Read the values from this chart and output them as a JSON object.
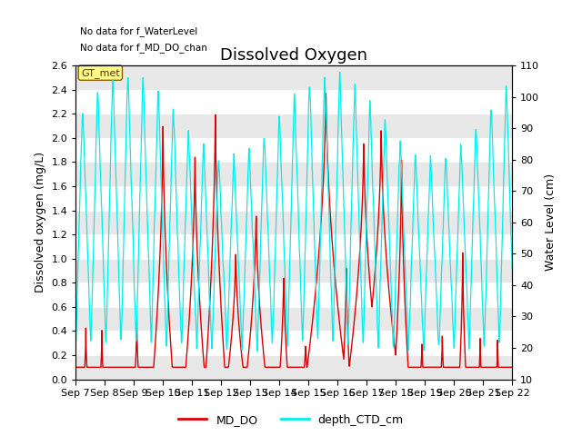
{
  "title": "Dissolved Oxygen",
  "ylabel_left": "Dissolved oxygen (mg/L)",
  "ylabel_right": "Water Level (cm)",
  "ylim_left": [
    0.0,
    2.6
  ],
  "ylim_right": [
    10,
    110
  ],
  "yticks_left": [
    0.0,
    0.2,
    0.4,
    0.6,
    0.8,
    1.0,
    1.2,
    1.4,
    1.6,
    1.8,
    2.0,
    2.2,
    2.4,
    2.6
  ],
  "yticks_right": [
    10,
    20,
    30,
    40,
    50,
    60,
    70,
    80,
    90,
    100,
    110
  ],
  "xlim": [
    0,
    15
  ],
  "xtick_labels": [
    "Sep 7",
    "Sep 8",
    "Sep 9",
    "Sep 10",
    "Sep 11",
    "Sep 12",
    "Sep 13",
    "Sep 14",
    "Sep 15",
    "Sep 16",
    "Sep 17",
    "Sep 18",
    "Sep 19",
    "Sep 20",
    "Sep 21",
    "Sep 22"
  ],
  "no_data_text1": "No data for f_WaterLevel",
  "no_data_text2": "No data for f_MD_DO_chan",
  "gt_met_label": "GT_met",
  "legend_labels": [
    "MD_DO",
    "depth_CTD_cm"
  ],
  "md_do_color": "#dd0000",
  "depth_ctd_color": "#00eeee",
  "bg_band_color": "#cccccc",
  "background_color": "#ffffff",
  "title_fontsize": 13,
  "axis_label_fontsize": 9,
  "tick_fontsize": 8
}
